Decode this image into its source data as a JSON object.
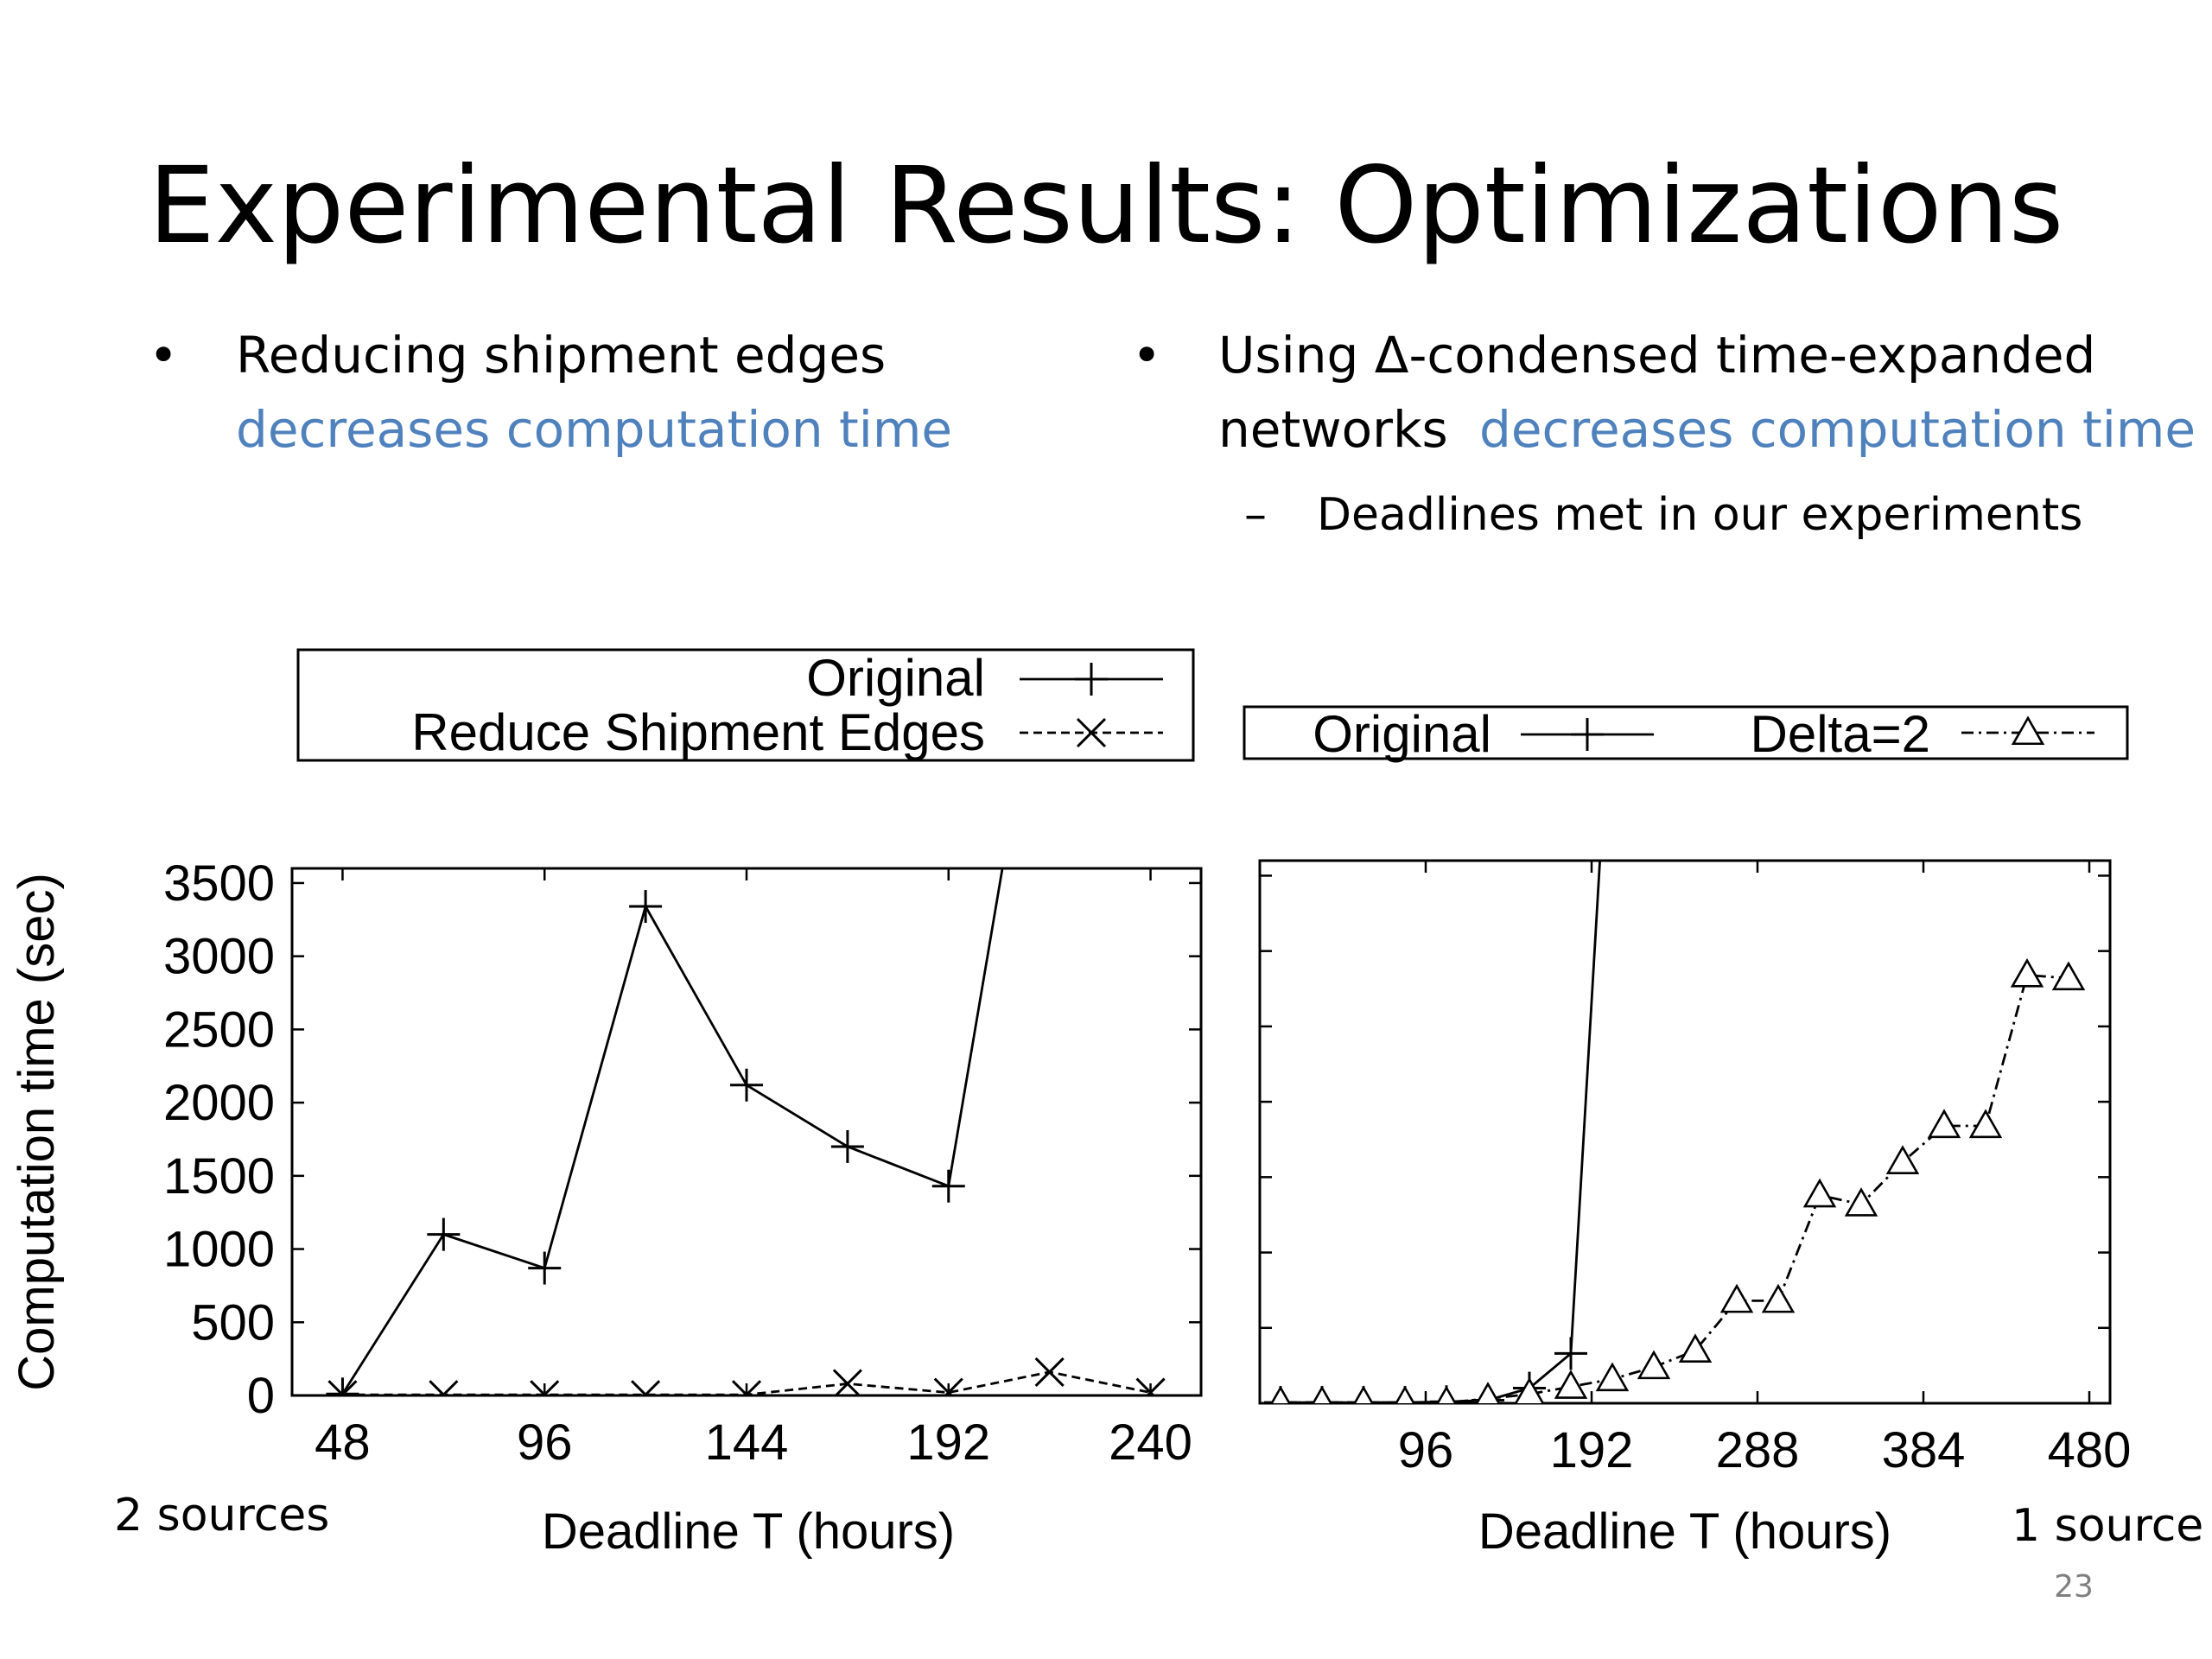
{
  "slide": {
    "title": "Experimental Results: Optimizations",
    "left_bullet": {
      "text": "Reducing shipment edges",
      "highlight": "decreases computation time"
    },
    "right_bullet": {
      "text_line1": "Using Δ-condensed time-expanded",
      "text_line2": "networks",
      "highlight": "decreases computation time",
      "sub_bullet": "Deadlines met in our experiments"
    },
    "left_caption": "2 sources",
    "right_caption": "1 source",
    "page_number": "23",
    "bullet_glyph": "•",
    "dash_glyph": "–",
    "highlight_color": "#4f81bd"
  },
  "chart_data": [
    {
      "type": "line",
      "ylabel": "Computation time (sec)",
      "xlabel": "Deadline T (hours)",
      "x_ticks": [
        48,
        96,
        144,
        192,
        240
      ],
      "y_ticks": [
        0,
        500,
        1000,
        1500,
        2000,
        2500,
        3000,
        3500
      ],
      "xlim": [
        36,
        252
      ],
      "ylim": [
        0,
        3600
      ],
      "legend_position": "top-outside",
      "series": [
        {
          "name": "Original",
          "marker": "plus",
          "line_style": "solid",
          "x": [
            48,
            72,
            96,
            120,
            144,
            168,
            192,
            216
          ],
          "y": [
            10,
            1100,
            870,
            3340,
            2120,
            1700,
            1430,
            5500
          ]
        },
        {
          "name": "Reduce Shipment Edges",
          "marker": "cross",
          "line_style": "dashed",
          "x": [
            48,
            72,
            96,
            120,
            144,
            168,
            192,
            216,
            240
          ],
          "y": [
            5,
            5,
            5,
            5,
            5,
            80,
            20,
            160,
            20
          ]
        }
      ]
    },
    {
      "type": "line",
      "xlabel": "Deadline T (hours)",
      "x_ticks": [
        96,
        192,
        288,
        384,
        480
      ],
      "xlim": [
        0,
        492
      ],
      "ylim": [
        0,
        3600
      ],
      "legend_position": "top-outside",
      "series": [
        {
          "name": "Original",
          "marker": "plus",
          "line_style": "solid",
          "x": [
            12,
            36,
            60,
            84,
            108,
            132,
            156,
            180,
            204
          ],
          "y": [
            5,
            5,
            5,
            5,
            10,
            20,
            100,
            330,
            5000
          ]
        },
        {
          "name": "Delta=2",
          "marker": "triangle",
          "line_style": "dash-dot",
          "x": [
            12,
            36,
            60,
            84,
            108,
            132,
            156,
            180,
            204,
            228,
            252,
            276,
            300,
            324,
            348,
            372,
            396,
            420,
            444,
            468
          ],
          "y": [
            5,
            5,
            5,
            5,
            5,
            30,
            60,
            110,
            160,
            240,
            350,
            680,
            680,
            1380,
            1320,
            1600,
            1840,
            1840,
            2840,
            2820
          ]
        }
      ]
    }
  ]
}
